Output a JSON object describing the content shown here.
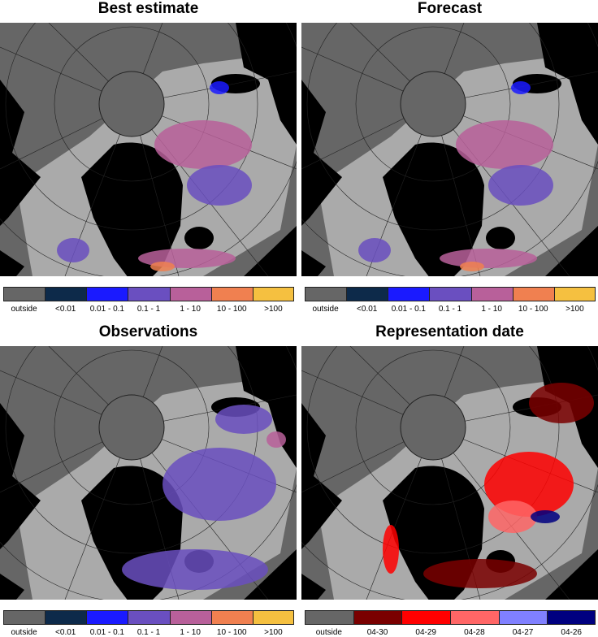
{
  "panels": [
    {
      "title": "Best estimate",
      "legend": [
        {
          "label": "outside",
          "color": "#666666"
        },
        {
          "label": "<0.01",
          "color": "#0d2a4a"
        },
        {
          "label": "0.01 - 0.1",
          "color": "#1a1aff"
        },
        {
          "label": "0.1 - 1",
          "color": "#6a4fc0"
        },
        {
          "label": "1 - 10",
          "color": "#b8609a"
        },
        {
          "label": "10 - 100",
          "color": "#f08050"
        },
        {
          "label": ">100",
          "color": "#f5c040"
        }
      ]
    },
    {
      "title": "Forecast",
      "legend": [
        {
          "label": "outside",
          "color": "#666666"
        },
        {
          "label": "<0.01",
          "color": "#0d2a4a"
        },
        {
          "label": "0.01 - 0.1",
          "color": "#1a1aff"
        },
        {
          "label": "0.1 - 1",
          "color": "#6a4fc0"
        },
        {
          "label": "1 - 10",
          "color": "#b8609a"
        },
        {
          "label": "10 - 100",
          "color": "#f08050"
        },
        {
          "label": ">100",
          "color": "#f5c040"
        }
      ]
    },
    {
      "title": "Observations",
      "legend": [
        {
          "label": "outside",
          "color": "#666666"
        },
        {
          "label": "<0.01",
          "color": "#0d2a4a"
        },
        {
          "label": "0.01 - 0.1",
          "color": "#1a1aff"
        },
        {
          "label": "0.1 - 1",
          "color": "#6a4fc0"
        },
        {
          "label": "1 - 10",
          "color": "#b8609a"
        },
        {
          "label": "10 - 100",
          "color": "#f08050"
        },
        {
          "label": ">100",
          "color": "#f5c040"
        }
      ]
    },
    {
      "title": "Representation date",
      "legend": [
        {
          "label": "outside",
          "color": "#666666"
        },
        {
          "label": "04-30",
          "color": "#7a0000"
        },
        {
          "label": "04-29",
          "color": "#ff0000"
        },
        {
          "label": "04-28",
          "color": "#ff6666"
        },
        {
          "label": "04-27",
          "color": "#8080ff"
        },
        {
          "label": "04-26",
          "color": "#000080"
        }
      ]
    }
  ]
}
